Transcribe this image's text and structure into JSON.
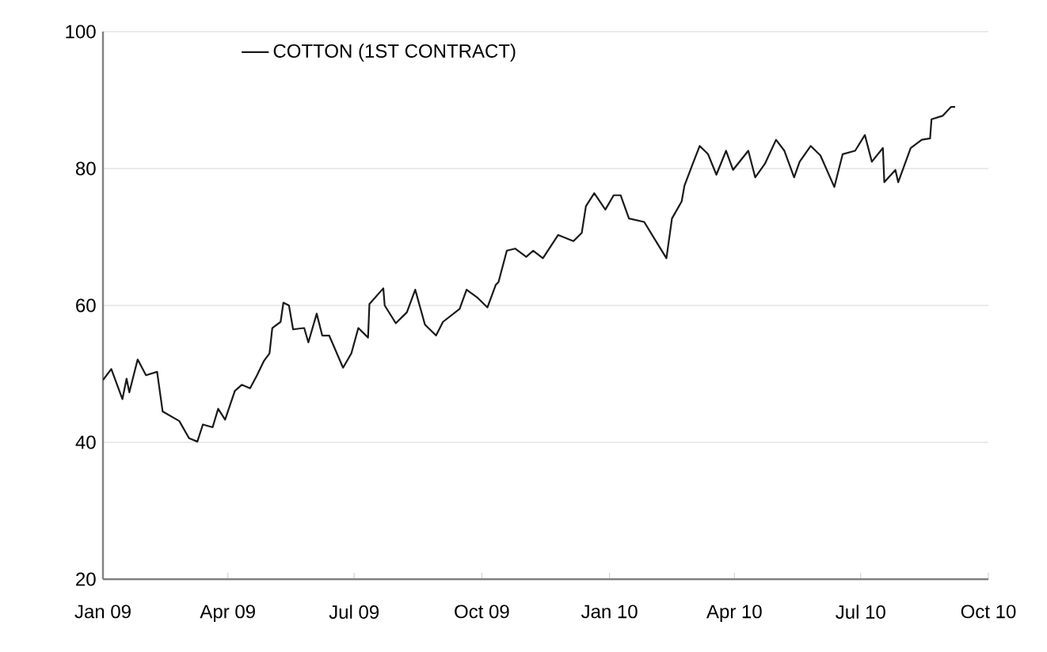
{
  "chart_data": {
    "type": "line",
    "legend": "top",
    "grid": "y",
    "marker": "none",
    "line_style": "solid",
    "xlim": [
      "2009-01-01",
      "2010-10-01"
    ],
    "xticks": [
      {
        "value": "2009-01-01",
        "label": "Jan 09"
      },
      {
        "value": "2009-04-01",
        "label": "Apr 09"
      },
      {
        "value": "2009-07-01",
        "label": "Jul 09"
      },
      {
        "value": "2009-10-01",
        "label": "Oct 09"
      },
      {
        "value": "2010-01-01",
        "label": "Jan 10"
      },
      {
        "value": "2010-04-01",
        "label": "Apr 10"
      },
      {
        "value": "2010-07-01",
        "label": "Jul 10"
      },
      {
        "value": "2010-10-01",
        "label": "Oct 10"
      }
    ],
    "ylim": [
      20,
      100
    ],
    "yticks": [
      20,
      40,
      60,
      80,
      100
    ],
    "series": [
      {
        "name": "COTTON (1ST CONTRACT)",
        "color": "#1a1a1a",
        "x": [
          "2009-01-01",
          "2009-01-07",
          "2009-01-15",
          "2009-01-18",
          "2009-01-20",
          "2009-01-26",
          "2009-02-01",
          "2009-02-09",
          "2009-02-13",
          "2009-02-25",
          "2009-03-04",
          "2009-03-10",
          "2009-03-14",
          "2009-03-21",
          "2009-03-25",
          "2009-03-30",
          "2009-04-06",
          "2009-04-11",
          "2009-04-17",
          "2009-04-22",
          "2009-04-27",
          "2009-05-01",
          "2009-05-03",
          "2009-05-09",
          "2009-05-11",
          "2009-05-15",
          "2009-05-18",
          "2009-05-26",
          "2009-05-29",
          "2009-06-04",
          "2009-06-08",
          "2009-06-13",
          "2009-06-23",
          "2009-06-29",
          "2009-07-04",
          "2009-07-11",
          "2009-07-12",
          "2009-07-22",
          "2009-07-23",
          "2009-07-31",
          "2009-08-08",
          "2009-08-14",
          "2009-08-21",
          "2009-08-29",
          "2009-09-03",
          "2009-09-15",
          "2009-09-20",
          "2009-09-28",
          "2009-10-05",
          "2009-10-11",
          "2009-10-13",
          "2009-10-19",
          "2009-10-25",
          "2009-11-02",
          "2009-11-07",
          "2009-11-14",
          "2009-11-25",
          "2009-12-06",
          "2009-12-12",
          "2009-12-15",
          "2009-12-21",
          "2009-12-29",
          "2010-01-04",
          "2010-01-09",
          "2010-01-15",
          "2010-01-26",
          "2010-02-04",
          "2010-02-11",
          "2010-02-15",
          "2010-02-22",
          "2010-02-24",
          "2010-03-02",
          "2010-03-07",
          "2010-03-13",
          "2010-03-19",
          "2010-03-26",
          "2010-03-31",
          "2010-04-11",
          "2010-04-16",
          "2010-04-23",
          "2010-05-01",
          "2010-05-07",
          "2010-05-14",
          "2010-05-18",
          "2010-05-26",
          "2010-06-02",
          "2010-06-12",
          "2010-06-18",
          "2010-06-27",
          "2010-07-04",
          "2010-07-09",
          "2010-07-17",
          "2010-07-18",
          "2010-07-26",
          "2010-07-28",
          "2010-08-06",
          "2010-08-14",
          "2010-08-20",
          "2010-08-21",
          "2010-08-29",
          "2010-09-04",
          "2010-09-07"
        ],
        "values": [
          49.1,
          50.7,
          46.3,
          49.3,
          47.3,
          52.1,
          49.8,
          50.3,
          44.5,
          43.1,
          40.6,
          40.1,
          42.6,
          42.2,
          44.9,
          43.3,
          47.5,
          48.4,
          47.9,
          49.8,
          51.9,
          53.0,
          56.7,
          57.6,
          60.4,
          60.0,
          56.5,
          56.7,
          54.6,
          58.8,
          55.6,
          55.6,
          50.9,
          53.0,
          56.7,
          55.3,
          60.2,
          62.5,
          60.0,
          57.4,
          59.0,
          62.3,
          57.2,
          55.6,
          57.6,
          59.5,
          62.3,
          61.1,
          59.7,
          63.0,
          63.4,
          68.0,
          68.3,
          67.1,
          68.0,
          66.9,
          70.3,
          69.4,
          70.6,
          74.5,
          76.4,
          74.0,
          76.1,
          76.1,
          72.7,
          72.2,
          69.2,
          66.9,
          72.7,
          75.2,
          77.5,
          80.7,
          83.3,
          82.1,
          79.1,
          82.6,
          79.8,
          82.6,
          78.7,
          80.7,
          84.2,
          82.6,
          78.7,
          81.0,
          83.3,
          81.9,
          77.3,
          82.1,
          82.6,
          84.9,
          81.0,
          83.0,
          78.0,
          79.8,
          78.0,
          83.0,
          84.2,
          84.4,
          87.2,
          87.7,
          89.0,
          89.0
        ]
      }
    ]
  }
}
